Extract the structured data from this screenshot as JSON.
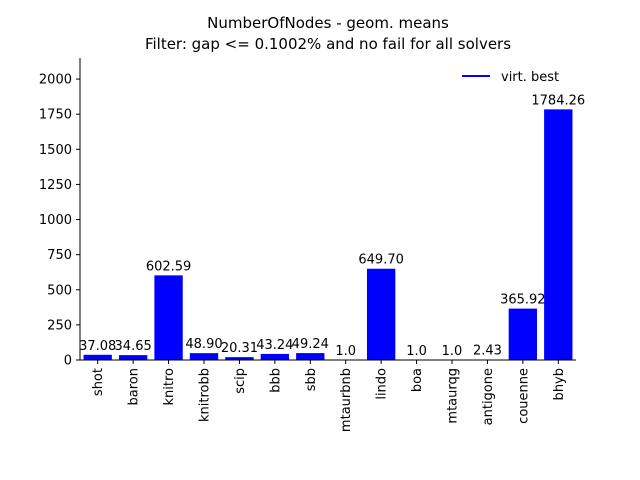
{
  "chart_data": {
    "type": "bar",
    "title": "NumberOfNodes - geom. means",
    "subtitle": "Filter: gap <= 0.1002% and no fail for all solvers",
    "xlabel": "",
    "ylabel": "",
    "categories": [
      "shot",
      "baron",
      "knitro",
      "knitrobb",
      "scip",
      "bbb",
      "sbb",
      "mtaurbnb",
      "lindo",
      "boa",
      "mtaurqg",
      "antigone",
      "couenne",
      "bhyb"
    ],
    "values": [
      37.08,
      34.65,
      602.59,
      48.9,
      20.31,
      43.24,
      49.24,
      1.0,
      649.7,
      1.0,
      1.0,
      2.43,
      365.92,
      1784.26
    ],
    "value_labels": [
      "37.08",
      "34.65",
      "602.59",
      "48.90",
      "20.31",
      "43.24",
      "49.24",
      "1.0",
      "649.70",
      "1.0",
      "1.0",
      "2.43",
      "365.92",
      "1784.26"
    ],
    "ylim": [
      0,
      2150
    ],
    "yticks": [
      0,
      250,
      500,
      750,
      1000,
      1250,
      1500,
      1750,
      2000
    ],
    "bar_color": "#0000ff",
    "grid": false,
    "legend": {
      "placement": "top-right",
      "entries": [
        {
          "label": "virt. best",
          "color": "#0000ff",
          "marker": "line"
        }
      ]
    }
  }
}
